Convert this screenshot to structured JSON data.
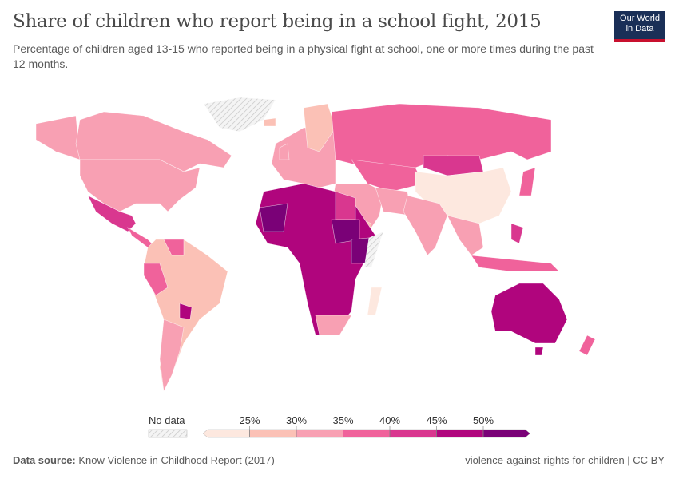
{
  "header": {
    "title": "Share of children who report being in a school fight, 2015",
    "subtitle": "Percentage of children aged 13-15 who reported being in a physical fight at school, one or more times during the past 12 months.",
    "logo_line1": "Our World",
    "logo_line2": "in Data"
  },
  "legend": {
    "no_data_label": "No data",
    "no_data_color": "#e8e8e8",
    "bins": [
      {
        "range": "<25%",
        "color": "#fde8df"
      },
      {
        "range": "25-30%",
        "color": "#fbc1b6"
      },
      {
        "range": "30-35%",
        "color": "#f8a0b3"
      },
      {
        "range": "35-40%",
        "color": "#f0629b"
      },
      {
        "range": "40-45%",
        "color": "#d9378f"
      },
      {
        "range": "45-50%",
        "color": "#b0057d"
      },
      {
        "range": ">50%",
        "color": "#7a0177"
      }
    ],
    "ticks": [
      "25%",
      "30%",
      "35%",
      "40%",
      "45%",
      "50%"
    ]
  },
  "map": {
    "regions": [
      {
        "id": "alaska",
        "bin": 2
      },
      {
        "id": "canada",
        "bin": 2
      },
      {
        "id": "usa",
        "bin": 2
      },
      {
        "id": "mexico",
        "bin": 4
      },
      {
        "id": "central-america",
        "bin": 3
      },
      {
        "id": "south-america",
        "bin": 1
      },
      {
        "id": "peru",
        "bin": 3
      },
      {
        "id": "venezuela",
        "bin": 3
      },
      {
        "id": "argentina",
        "bin": 2
      },
      {
        "id": "paraguay",
        "bin": 5
      },
      {
        "id": "greenland",
        "bin": -1
      },
      {
        "id": "iceland",
        "bin": 1
      },
      {
        "id": "europe",
        "bin": 2
      },
      {
        "id": "scandinavia",
        "bin": 1
      },
      {
        "id": "uk",
        "bin": 2
      },
      {
        "id": "russia",
        "bin": 3
      },
      {
        "id": "central-asia",
        "bin": 3
      },
      {
        "id": "mongolia",
        "bin": 4
      },
      {
        "id": "china",
        "bin": 0
      },
      {
        "id": "middle-east",
        "bin": 2
      },
      {
        "id": "arabia",
        "bin": 1
      },
      {
        "id": "iran",
        "bin": 2
      },
      {
        "id": "india",
        "bin": 2
      },
      {
        "id": "southeast-asia",
        "bin": 2
      },
      {
        "id": "indonesia",
        "bin": 3
      },
      {
        "id": "philippines",
        "bin": 4
      },
      {
        "id": "japan",
        "bin": 3
      },
      {
        "id": "africa",
        "bin": 5
      },
      {
        "id": "west-sahel",
        "bin": 6
      },
      {
        "id": "egypt",
        "bin": 4
      },
      {
        "id": "sudan",
        "bin": 6
      },
      {
        "id": "east-africa",
        "bin": 6
      },
      {
        "id": "somalia",
        "bin": -1
      },
      {
        "id": "south-africa",
        "bin": 2
      },
      {
        "id": "madagascar",
        "bin": 0
      },
      {
        "id": "australia",
        "bin": 5
      },
      {
        "id": "tasmania",
        "bin": 5
      },
      {
        "id": "new-zealand",
        "bin": 3
      }
    ]
  },
  "footer": {
    "source_label": "Data source:",
    "source_text": "Know Violence in Childhood Report (2017)",
    "right_text": "violence-against-rights-for-children | CC BY"
  }
}
